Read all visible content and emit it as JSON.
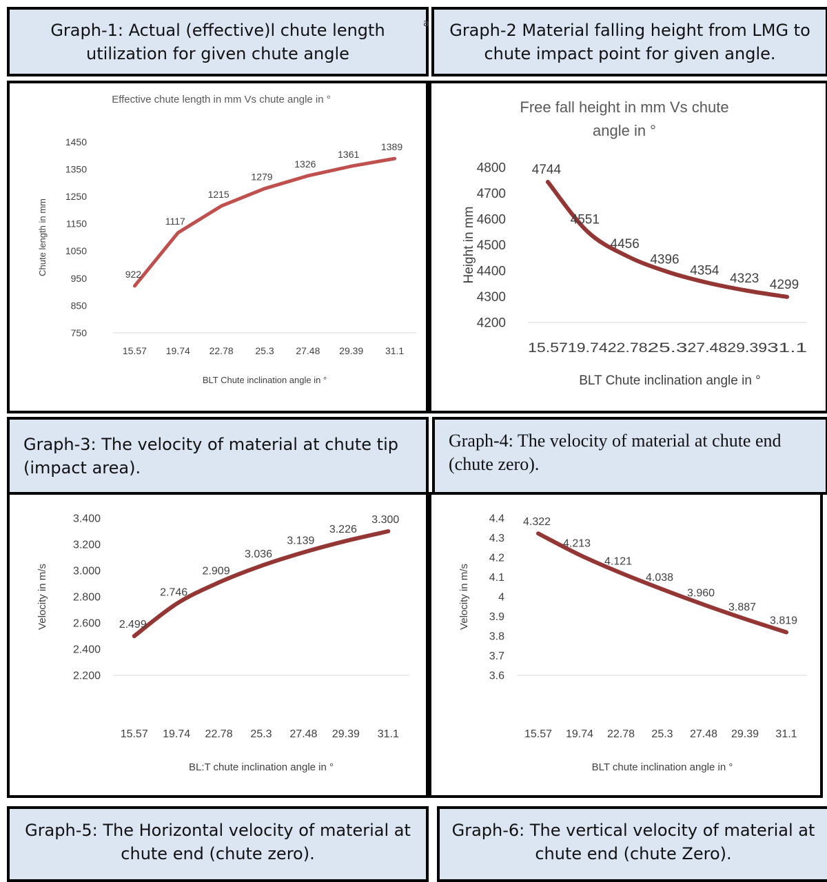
{
  "captions": {
    "g1": "Graph-1: Actual (effective)l chute length utilization for given chute angle",
    "g2": "Graph-2 Material falling height from LMG to chute impact point for given angle.",
    "g3": "Graph-3: The velocity of material at chute tip (impact area).",
    "g4": "Graph-4: The velocity of material at chute end (chute zero).",
    "g5": "Graph-5: The Horizontal velocity of material at chute end (chute zero).",
    "g6": "Graph-6: The vertical velocity of material at chute end (chute Zero).",
    "stray_char": "a"
  },
  "colors": {
    "caption_bg": "#dce6f2",
    "line_red": "#c0504d",
    "line_dark": "#943634",
    "grid": "#d9d9d9"
  },
  "chart_data": [
    {
      "type": "line",
      "title": "Effective chute length in mm Vs chute angle in °",
      "xlabel": "BLT Chute inclination angle in °",
      "ylabel": "Chute length in mm",
      "categories": [
        "15.57",
        "19.74",
        "22.78",
        "25.3",
        "27.48",
        "29.39",
        "31.1"
      ],
      "values": [
        922,
        1117,
        1215,
        1279,
        1326,
        1361,
        1389
      ],
      "data_labels": [
        "922",
        "1117",
        "1215",
        "1279",
        "1326",
        "1361",
        "1389"
      ],
      "yticks": [
        "750",
        "850",
        "950",
        "1050",
        "1150",
        "1250",
        "1350",
        "1450"
      ],
      "ylim": [
        750,
        1450
      ],
      "grid": false,
      "smooth": false
    },
    {
      "type": "line",
      "title": "Free fall height in mm Vs chute angle in °",
      "xlabel": "BLT Chute inclination angle in °",
      "ylabel": "Height in mm",
      "categories": [
        "15.57",
        "19.74",
        "22.78",
        "25.3",
        "27.48",
        "29.39",
        "31.1"
      ],
      "values": [
        4744,
        4551,
        4456,
        4396,
        4354,
        4323,
        4299
      ],
      "data_labels": [
        "4744",
        "4551",
        "4456",
        "4396",
        "4354",
        "4323",
        "4299"
      ],
      "yticks": [
        "4200",
        "4300",
        "4400",
        "4500",
        "4600",
        "4700",
        "4800"
      ],
      "ylim": [
        4200,
        4800
      ],
      "grid": false,
      "smooth": true
    },
    {
      "type": "line",
      "title": "",
      "xlabel": "BL:T chute inclination angle in °",
      "ylabel": "Velocity in m/s",
      "categories": [
        "15.57",
        "19.74",
        "22.78",
        "25.3",
        "27.48",
        "29.39",
        "31.1"
      ],
      "values": [
        2.499,
        2.746,
        2.909,
        3.036,
        3.139,
        3.226,
        3.3
      ],
      "data_labels": [
        "2.499",
        "2.746",
        "2.909",
        "3.036",
        "3.139",
        "3.226",
        "3.300"
      ],
      "yticks": [
        "2.200",
        "2.400",
        "2.600",
        "2.800",
        "3.000",
        "3.200",
        "3.400"
      ],
      "ylim": [
        2.2,
        3.4
      ],
      "grid": false,
      "smooth": true
    },
    {
      "type": "line",
      "title": "",
      "xlabel": "BLT chute inclination angle in °",
      "ylabel": "Velocity in m/s",
      "categories": [
        "15.57",
        "19.74",
        "22.78",
        "25.3",
        "27.48",
        "29.39",
        "31.1"
      ],
      "values": [
        4.322,
        4.213,
        4.121,
        4.038,
        3.96,
        3.887,
        3.819
      ],
      "data_labels": [
        "4.322",
        "4.213",
        "4.121",
        "4.038",
        "3.960",
        "3.887",
        "3.819"
      ],
      "yticks": [
        "3.6",
        "3.7",
        "3.8",
        "3.9",
        "4",
        "4.1",
        "4.2",
        "4.3",
        "4.4"
      ],
      "ylim": [
        3.6,
        4.4
      ],
      "grid": false,
      "smooth": true
    }
  ]
}
